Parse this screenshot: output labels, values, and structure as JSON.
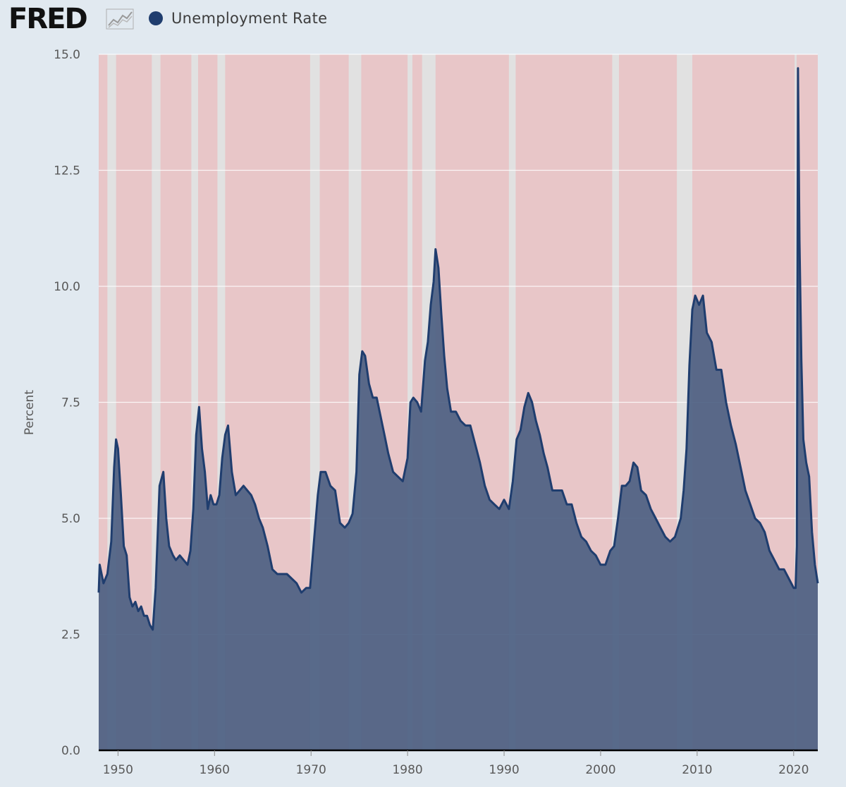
{
  "header": {
    "logo_text": "FRED",
    "series_label": "Unemployment Rate",
    "series_color": "#1f3d6e"
  },
  "colors": {
    "background": "#e1e9f0",
    "expansion_fill": "#e8c6c8",
    "recession_band": "#e1e1e1",
    "area_fill": "#4c5f82",
    "line": "#1f3d6e"
  },
  "chart_data": {
    "type": "area",
    "title": "",
    "xlabel": "",
    "ylabel": "Percent",
    "ylim": [
      0,
      15
    ],
    "xlim": [
      1948.0,
      2022.5
    ],
    "yticks": [
      "0.0",
      "2.5",
      "5.0",
      "7.5",
      "10.0",
      "12.5",
      "15.0"
    ],
    "xticks": [
      "1950",
      "1960",
      "1970",
      "1980",
      "1990",
      "2000",
      "2010",
      "2020"
    ],
    "grid": true,
    "legend": "top-left",
    "recession_shading": [
      [
        1948.9,
        1949.8
      ],
      [
        1953.5,
        1954.4
      ],
      [
        1957.6,
        1958.3
      ],
      [
        1960.3,
        1961.1
      ],
      [
        1969.9,
        1970.9
      ],
      [
        1973.9,
        1975.2
      ],
      [
        1980.0,
        1980.5
      ],
      [
        1981.5,
        1982.9
      ],
      [
        1990.5,
        1991.2
      ],
      [
        2001.2,
        2001.9
      ],
      [
        2007.9,
        2009.5
      ],
      [
        2020.1,
        2020.3
      ]
    ],
    "series": [
      {
        "name": "Unemployment Rate",
        "x": [
          1948.0,
          1948.1,
          1948.5,
          1948.9,
          1949.3,
          1949.6,
          1949.8,
          1950.0,
          1950.3,
          1950.6,
          1950.9,
          1951.2,
          1951.5,
          1951.8,
          1952.1,
          1952.4,
          1952.7,
          1953.0,
          1953.3,
          1953.6,
          1953.9,
          1954.3,
          1954.7,
          1955.0,
          1955.3,
          1955.7,
          1956.0,
          1956.4,
          1956.8,
          1957.2,
          1957.5,
          1957.8,
          1958.1,
          1958.4,
          1958.7,
          1959.0,
          1959.3,
          1959.6,
          1959.9,
          1960.2,
          1960.5,
          1960.8,
          1961.1,
          1961.4,
          1961.8,
          1962.2,
          1962.6,
          1963.0,
          1963.4,
          1963.8,
          1964.2,
          1964.6,
          1965.0,
          1965.5,
          1966.0,
          1966.5,
          1967.0,
          1967.5,
          1968.0,
          1968.5,
          1969.0,
          1969.5,
          1969.9,
          1970.3,
          1970.7,
          1971.0,
          1971.5,
          1972.0,
          1972.5,
          1973.0,
          1973.5,
          1973.9,
          1974.3,
          1974.7,
          1975.0,
          1975.3,
          1975.6,
          1976.0,
          1976.4,
          1976.8,
          1977.2,
          1977.6,
          1978.0,
          1978.5,
          1979.0,
          1979.5,
          1980.0,
          1980.3,
          1980.6,
          1981.0,
          1981.4,
          1981.8,
          1982.1,
          1982.4,
          1982.7,
          1982.9,
          1983.2,
          1983.5,
          1983.8,
          1984.1,
          1984.5,
          1985.0,
          1985.5,
          1986.0,
          1986.5,
          1987.0,
          1987.5,
          1988.0,
          1988.5,
          1989.0,
          1989.5,
          1990.0,
          1990.5,
          1990.9,
          1991.3,
          1991.7,
          1992.1,
          1992.5,
          1992.9,
          1993.3,
          1993.7,
          1994.1,
          1994.5,
          1995.0,
          1995.5,
          1996.0,
          1996.5,
          1997.0,
          1997.5,
          1998.0,
          1998.5,
          1999.0,
          1999.5,
          2000.0,
          2000.5,
          2001.0,
          2001.4,
          2001.8,
          2002.2,
          2002.6,
          2003.0,
          2003.4,
          2003.8,
          2004.2,
          2004.7,
          2005.2,
          2005.7,
          2006.2,
          2006.7,
          2007.2,
          2007.7,
          2008.0,
          2008.3,
          2008.6,
          2008.9,
          2009.2,
          2009.5,
          2009.8,
          2010.2,
          2010.6,
          2011.0,
          2011.5,
          2012.0,
          2012.5,
          2013.0,
          2013.5,
          2014.0,
          2014.5,
          2015.0,
          2015.5,
          2016.0,
          2016.5,
          2017.0,
          2017.5,
          2018.0,
          2018.5,
          2019.0,
          2019.5,
          2020.0,
          2020.2,
          2020.33,
          2020.45,
          2020.6,
          2020.8,
          2021.0,
          2021.3,
          2021.6,
          2021.9,
          2022.2,
          2022.5
        ],
        "y": [
          3.4,
          4.0,
          3.6,
          3.8,
          4.5,
          6.1,
          6.7,
          6.5,
          5.5,
          4.4,
          4.2,
          3.3,
          3.1,
          3.2,
          3.0,
          3.1,
          2.9,
          2.9,
          2.7,
          2.6,
          3.5,
          5.7,
          6.0,
          5.0,
          4.4,
          4.2,
          4.1,
          4.2,
          4.1,
          4.0,
          4.3,
          5.2,
          6.8,
          7.4,
          6.5,
          6.0,
          5.2,
          5.5,
          5.3,
          5.3,
          5.5,
          6.3,
          6.8,
          7.0,
          6.0,
          5.5,
          5.6,
          5.7,
          5.6,
          5.5,
          5.3,
          5.0,
          4.8,
          4.4,
          3.9,
          3.8,
          3.8,
          3.8,
          3.7,
          3.6,
          3.4,
          3.5,
          3.5,
          4.5,
          5.5,
          6.0,
          6.0,
          5.7,
          5.6,
          4.9,
          4.8,
          4.9,
          5.1,
          6.0,
          8.1,
          8.6,
          8.5,
          7.9,
          7.6,
          7.6,
          7.2,
          6.8,
          6.4,
          6.0,
          5.9,
          5.8,
          6.3,
          7.5,
          7.6,
          7.5,
          7.3,
          8.4,
          8.8,
          9.6,
          10.1,
          10.8,
          10.4,
          9.4,
          8.5,
          7.8,
          7.3,
          7.3,
          7.1,
          7.0,
          7.0,
          6.6,
          6.2,
          5.7,
          5.4,
          5.3,
          5.2,
          5.4,
          5.2,
          5.8,
          6.7,
          6.9,
          7.4,
          7.7,
          7.5,
          7.1,
          6.8,
          6.4,
          6.1,
          5.6,
          5.6,
          5.6,
          5.3,
          5.3,
          4.9,
          4.6,
          4.5,
          4.3,
          4.2,
          4.0,
          4.0,
          4.3,
          4.4,
          5.0,
          5.7,
          5.7,
          5.8,
          6.2,
          6.1,
          5.6,
          5.5,
          5.2,
          5.0,
          4.8,
          4.6,
          4.5,
          4.6,
          4.8,
          5.0,
          5.6,
          6.5,
          8.3,
          9.5,
          9.8,
          9.6,
          9.8,
          9.0,
          8.8,
          8.2,
          8.2,
          7.5,
          7.0,
          6.6,
          6.1,
          5.6,
          5.3,
          5.0,
          4.9,
          4.7,
          4.3,
          4.1,
          3.9,
          3.9,
          3.7,
          3.5,
          3.5,
          4.4,
          14.7,
          11.0,
          8.4,
          6.7,
          6.2,
          5.9,
          4.7,
          4.0,
          3.6
        ]
      }
    ]
  }
}
